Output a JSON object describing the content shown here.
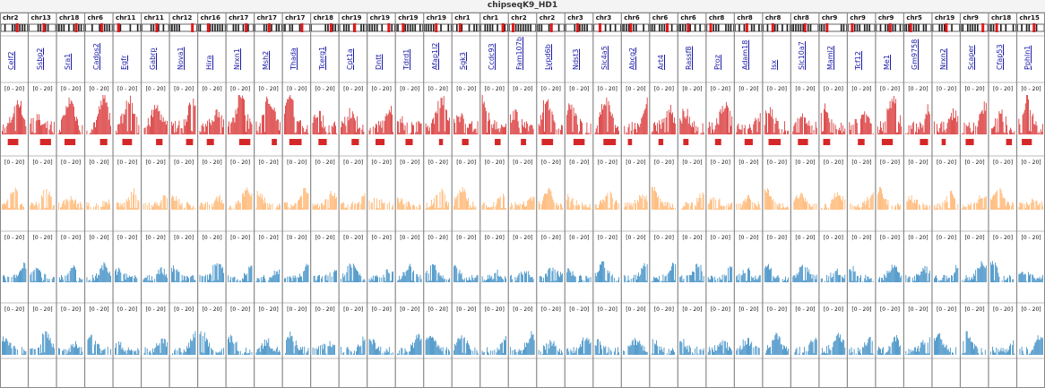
{
  "title": "chipseqK9_HD1",
  "colors": {
    "track1": "#d62728",
    "track2": "#ffb066",
    "track3": "#2f86c0",
    "track4": "#2f86c0",
    "ideogram": "#000000",
    "ideogram_marker": "#e31a1c",
    "gene_label": "#1a1aa6"
  },
  "track_scale_label": "[0 - 20]",
  "loci": [
    {
      "chr": "chr2",
      "gene": "Celf2"
    },
    {
      "chr": "chr13",
      "gene": "Ssbp2"
    },
    {
      "chr": "chr18",
      "gene": "Sra1"
    },
    {
      "chr": "chr6",
      "gene": "Cadps2"
    },
    {
      "chr": "chr11",
      "gene": "Egfr"
    },
    {
      "chr": "chr11",
      "gene": "Gabrp"
    },
    {
      "chr": "chr12",
      "gene": "Nova1"
    },
    {
      "chr": "chr16",
      "gene": "Hira"
    },
    {
      "chr": "chr17",
      "gene": "Nrxn1"
    },
    {
      "chr": "chr17",
      "gene": "Msh2"
    },
    {
      "chr": "chr17",
      "gene": "Thada"
    },
    {
      "chr": "chr18",
      "gene": "Tcerg1"
    },
    {
      "chr": "chr19",
      "gene": "Cpt1a"
    },
    {
      "chr": "chr19",
      "gene": "Dntt"
    },
    {
      "chr": "chr19",
      "gene": "Tdrd1"
    },
    {
      "chr": "chr19",
      "gene": "Afap1l2"
    },
    {
      "chr": "chr1",
      "gene": "Sgk3"
    },
    {
      "chr": "chr1",
      "gene": "Ccdc93"
    },
    {
      "chr": "chr2",
      "gene": "Fam107b"
    },
    {
      "chr": "chr2",
      "gene": "Lypd6b"
    },
    {
      "chr": "chr3",
      "gene": "Ndst3"
    },
    {
      "chr": "chr3",
      "gene": "Slc4a5"
    },
    {
      "chr": "chr6",
      "gene": "Abcg2"
    },
    {
      "chr": "chr6",
      "gene": "Art4"
    },
    {
      "chr": "chr6",
      "gene": "Rassf8"
    },
    {
      "chr": "chr8",
      "gene": "Proz"
    },
    {
      "chr": "chr8",
      "gene": "Adam18"
    },
    {
      "chr": "chr8",
      "gene": "Isx"
    },
    {
      "chr": "chr8",
      "gene": "Slc10a7"
    },
    {
      "chr": "chr9",
      "gene": "Maml2"
    },
    {
      "chr": "chr9",
      "gene": "Tcf12"
    },
    {
      "chr": "chr9",
      "gene": "Me1"
    },
    {
      "chr": "chr5",
      "gene": "Gm9758"
    },
    {
      "chr": "chr19",
      "gene": "Nrxn2"
    },
    {
      "chr": "chr9",
      "gene": "Scaper"
    },
    {
      "chr": "chr18",
      "gene": "Cfap53"
    },
    {
      "chr": "chr15",
      "gene": "Pphln1"
    }
  ]
}
